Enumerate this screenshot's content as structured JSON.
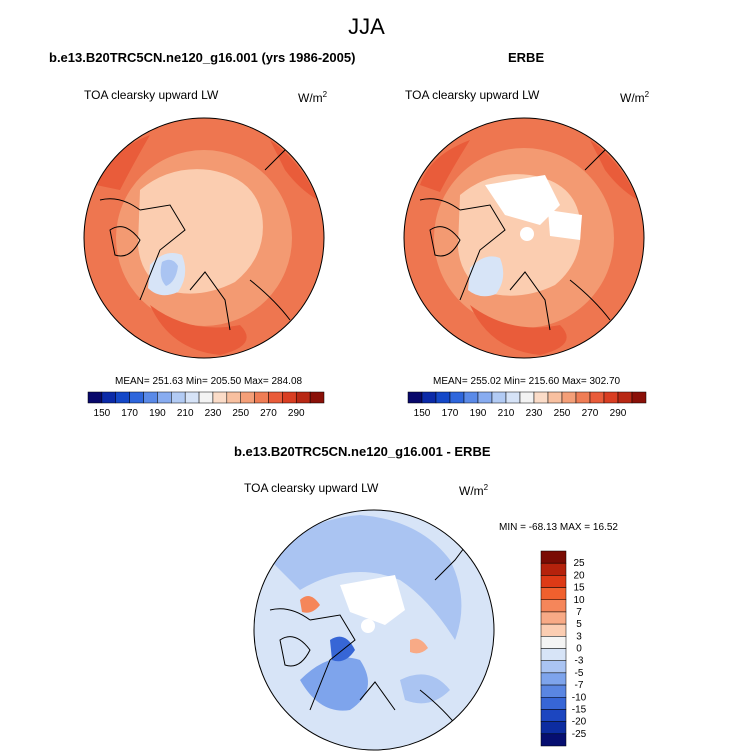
{
  "figure": {
    "title": "JJA"
  },
  "panels": [
    {
      "title": "b.e13.B20TRC5CN.ne120_g16.001 (yrs 1986-2005)",
      "subtitle": "TOA clearsky upward LW",
      "units": "W/m",
      "units_exp": "2",
      "stats": "MEAN= 251.63  Min= 205.50  Max= 284.08"
    },
    {
      "title": "ERBE",
      "subtitle": "TOA clearsky upward LW",
      "units": "W/m",
      "units_exp": "2",
      "stats": "MEAN= 255.02  Min= 215.60  Max= 302.70"
    },
    {
      "title": "b.e13.B20TRC5CN.ne120_g16.001 - ERBE",
      "subtitle": "TOA clearsky upward LW",
      "units": "W/m",
      "units_exp": "2",
      "stats": "MIN = -68.13 MAX =  16.52"
    }
  ],
  "colorbars": {
    "absolute": {
      "colors": [
        "#08086b",
        "#0b2aa8",
        "#1448c8",
        "#2e66dc",
        "#5a8ae8",
        "#88acf0",
        "#b2cbf4",
        "#d6e3f7",
        "#f3f3f3",
        "#fbdcc8",
        "#f8c0a0",
        "#f49f78",
        "#ef7d55",
        "#e95c3a",
        "#d93e22",
        "#b82814",
        "#8a1008"
      ],
      "labels": [
        "150",
        "170",
        "190",
        "210",
        "230",
        "250",
        "270",
        "290"
      ]
    },
    "difference": {
      "colors": [
        "#7a0c04",
        "#b5220c",
        "#dd3a16",
        "#f0602e",
        "#f5865a",
        "#f8aa86",
        "#fbcdb2",
        "#f4f4f4",
        "#d7e4f7",
        "#aac4f2",
        "#7ea4ec",
        "#5a86e2",
        "#3766d6",
        "#1c46c0",
        "#0c2ca0",
        "#060e70"
      ],
      "labels": [
        "25",
        "20",
        "15",
        "10",
        "7",
        "5",
        "3",
        "0",
        "-3",
        "-5",
        "-7",
        "-10",
        "-15",
        "-20",
        "-25"
      ]
    }
  }
}
